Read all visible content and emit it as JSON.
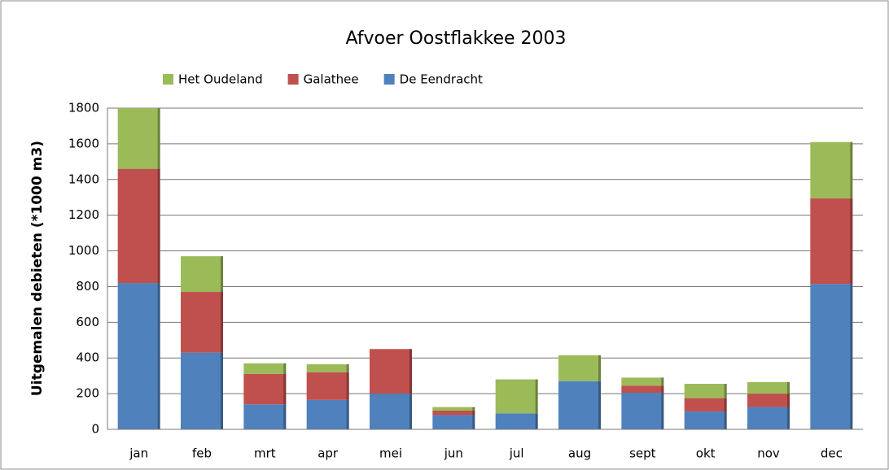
{
  "chart_data": {
    "type": "stacked_bar",
    "title": "Afvoer Oostflakkee 2003",
    "y_label": "Uitgemalen debieten (*1000 m3)",
    "categories": [
      "jan",
      "feb",
      "mrt",
      "apr",
      "mei",
      "jun",
      "jul",
      "aug",
      "sept",
      "okt",
      "nov",
      "dec"
    ],
    "series": [
      {
        "name": "De Eendracht",
        "color": "#4f81bd",
        "values": [
          820,
          430,
          140,
          165,
          200,
          80,
          90,
          270,
          205,
          100,
          125,
          815
        ]
      },
      {
        "name": "Galathee",
        "color": "#c0504d",
        "values": [
          640,
          340,
          170,
          155,
          250,
          25,
          0,
          0,
          40,
          75,
          75,
          480
        ]
      },
      {
        "name": "Het Oudeland",
        "color": "#9bbb59",
        "values": [
          340,
          200,
          60,
          45,
          0,
          20,
          190,
          145,
          45,
          80,
          65,
          315
        ]
      }
    ],
    "ylim": [
      0,
      1800
    ],
    "yticks": [
      0,
      200,
      400,
      600,
      800,
      1000,
      1200,
      1400,
      1600,
      1800
    ],
    "grid": true,
    "legend": "top"
  }
}
